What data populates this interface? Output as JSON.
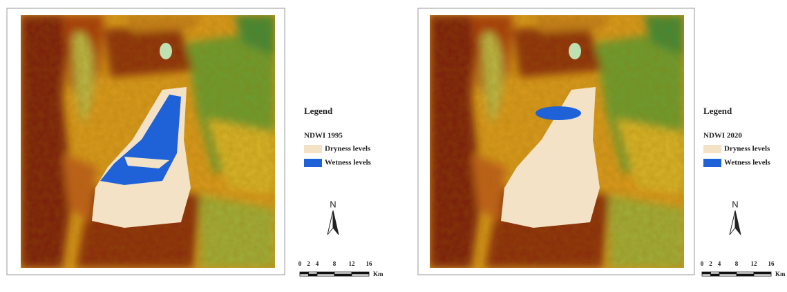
{
  "panels": [
    {
      "legend": {
        "title": "Legend",
        "subtitle": "NDWI 1995",
        "items": [
          {
            "label": "Dryness levels",
            "color": "#f4e2c6"
          },
          {
            "label": "Wetness levels",
            "color": "#1f62d8"
          }
        ]
      },
      "north": "N",
      "scale": {
        "ticks": [
          0,
          2,
          4,
          8,
          12,
          16
        ],
        "unit": "Km"
      }
    },
    {
      "legend": {
        "title": "Legend",
        "subtitle": "NDWI 2020",
        "items": [
          {
            "label": "Dryness levels",
            "color": "#f4e2c6"
          },
          {
            "label": "Wetness levels",
            "color": "#1f62d8"
          }
        ]
      },
      "north": "N",
      "scale": {
        "ticks": [
          0,
          2,
          4,
          8,
          12,
          16
        ],
        "unit": "Km"
      }
    }
  ]
}
